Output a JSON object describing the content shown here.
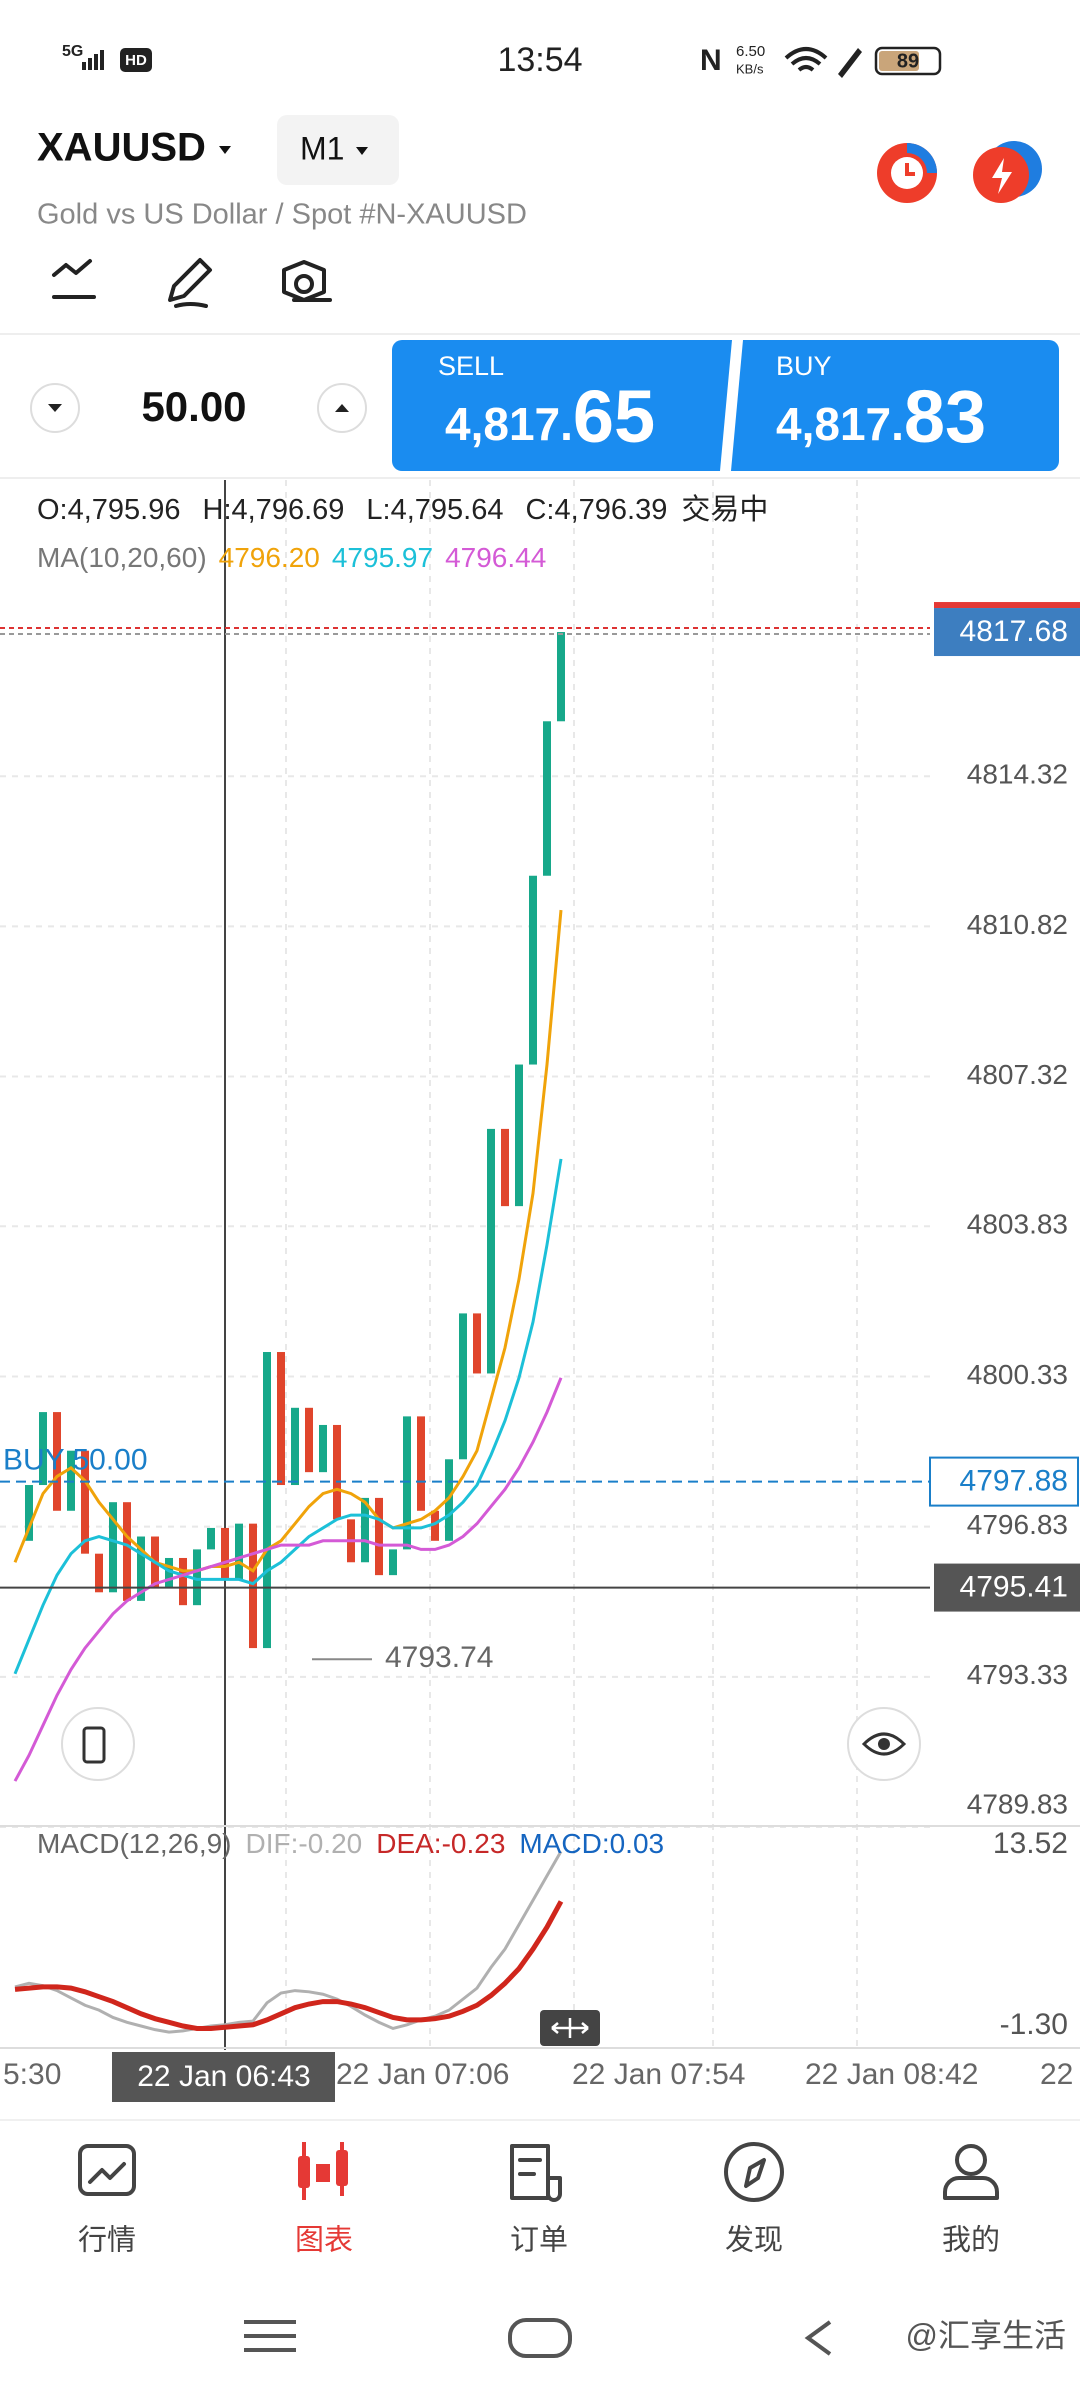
{
  "status_bar": {
    "time": "13:54",
    "network": "5G",
    "hd": "HD",
    "speed": "6.50",
    "speed_unit": "KB/s",
    "battery": "89"
  },
  "header": {
    "symbol": "XAUUSD",
    "timeframe": "M1",
    "description": "Gold vs US Dollar / Spot #N-XAUUSD"
  },
  "trade_panel": {
    "volume": "50.00",
    "sell": {
      "label": "SELL",
      "price_main": "4,817.",
      "price_big": "65"
    },
    "buy": {
      "label": "BUY",
      "price_main": "4,817.",
      "price_big": "83"
    }
  },
  "chart": {
    "ohlc": [
      "O:4,795.96",
      "H:4,796.69",
      "L:4,795.64",
      "C:4,796.39"
    ],
    "status": "交易中",
    "ma_label": "MA(10,20,60)",
    "ma": [
      {
        "name": "4796.20",
        "color": "#f0a30a",
        "values": [
          4796.0,
          4796.8,
          4797.6,
          4798.0,
          4798.2,
          4797.9,
          4797.4,
          4797.0,
          4796.6,
          4796.3,
          4796.0,
          4795.9,
          4795.8,
          4795.8,
          4795.9,
          4795.9,
          4796.0,
          4795.8,
          4796.3,
          4796.5,
          4796.9,
          4797.3,
          4797.6,
          4797.7,
          4797.6,
          4797.4,
          4797.0,
          4796.8,
          4796.9,
          4797.0,
          4797.2,
          4797.5,
          4798.0,
          4798.6,
          4799.8,
          4801.0,
          4802.6,
          4804.6,
          4807.6,
          4811.2
        ]
      },
      {
        "name": "4795.97",
        "color": "#1cc0d8",
        "values": [
          4793.4,
          4794.2,
          4795.0,
          4795.7,
          4796.2,
          4796.5,
          4796.6,
          4796.5,
          4796.4,
          4796.2,
          4796.0,
          4795.8,
          4795.7,
          4795.6,
          4795.6,
          4795.6,
          4795.6,
          4795.5,
          4795.8,
          4796.0,
          4796.3,
          4796.6,
          4796.8,
          4797.0,
          4797.1,
          4797.1,
          4797.0,
          4796.8,
          4796.8,
          4796.8,
          4796.9,
          4797.1,
          4797.4,
          4797.8,
          4798.5,
          4799.3,
          4800.3,
          4801.6,
          4803.4,
          4805.4
        ]
      },
      {
        "name": "4796.44",
        "color": "#d45ad6",
        "values": [
          4790.9,
          4791.5,
          4792.2,
          4792.9,
          4793.5,
          4794.0,
          4794.4,
          4794.8,
          4795.1,
          4795.3,
          4795.5,
          4795.6,
          4795.7,
          4795.8,
          4795.9,
          4796.0,
          4796.1,
          4796.2,
          4796.3,
          4796.4,
          4796.4,
          4796.4,
          4796.5,
          4796.5,
          4796.5,
          4796.5,
          4796.4,
          4796.4,
          4796.4,
          4796.3,
          4796.3,
          4796.4,
          4796.6,
          4796.9,
          4797.3,
          4797.7,
          4798.2,
          4798.8,
          4799.5,
          4800.3
        ]
      }
    ],
    "candles": {
      "up_color": "#17a88a",
      "down_color": "#e0452c",
      "closes": [
        4796.5,
        4797.8,
        4799.5,
        4797.2,
        4798.6,
        4796.2,
        4795.3,
        4797.4,
        4795.1,
        4796.6,
        4795.4,
        4796.1,
        4795.0,
        4796.3,
        4796.8,
        4795.6,
        4796.9,
        4794.0,
        4800.9,
        4797.8,
        4799.6,
        4798.1,
        4799.2,
        4797.0,
        4796.0,
        4797.5,
        4795.7,
        4796.3,
        4799.4,
        4797.2,
        4796.5,
        4798.4,
        4801.8,
        4800.4,
        4806.1,
        4804.3,
        4807.6,
        4812.0,
        4815.6,
        4817.68
      ]
    },
    "ylim": [
      4789.83,
      4821.2
    ],
    "yticks": [
      4814.32,
      4810.82,
      4807.32,
      4803.83,
      4800.33,
      4796.83,
      4793.33,
      4789.83
    ],
    "grid": true,
    "current_price": 4817.68,
    "position": {
      "label": "BUY 50.00",
      "price": 4797.88
    },
    "crosshair_price": 4795.41,
    "low_price": 4793.74,
    "crosshair_time": "22 Jan 06:43"
  },
  "macd": {
    "label": "MACD(12,26,9)",
    "dif": "DIF:-0.20",
    "dea": "DEA:-0.23",
    "macd": "MACD:0.03",
    "ylim": [
      -1.3,
      13.52
    ],
    "yticks": [
      {
        "value": -1.3,
        "label": "-1.30"
      },
      13.52
    ],
    "dif_color": "#b0b0b0",
    "dea_color": "#d0261c",
    "dif_values": [
      1.9,
      2.2,
      2.0,
      1.6,
      1.0,
      0.4,
      0.0,
      -0.6,
      -1.0,
      -1.3,
      -1.6,
      -1.8,
      -1.7,
      -1.5,
      -1.3,
      -1.2,
      -1.0,
      -0.9,
      0.6,
      1.4,
      1.6,
      1.5,
      1.3,
      0.9,
      0.3,
      -0.4,
      -1.0,
      -1.5,
      -1.2,
      -0.8,
      -0.5,
      0.0,
      0.9,
      1.8,
      3.5,
      5.0,
      7.0,
      9.0,
      11.0,
      13.0
    ],
    "dea_values": [
      1.7,
      1.8,
      1.9,
      1.9,
      1.8,
      1.5,
      1.1,
      0.7,
      0.2,
      -0.3,
      -0.7,
      -1.0,
      -1.3,
      -1.5,
      -1.5,
      -1.4,
      -1.3,
      -1.2,
      -0.8,
      -0.3,
      0.2,
      0.5,
      0.7,
      0.7,
      0.5,
      0.2,
      -0.2,
      -0.6,
      -0.8,
      -0.8,
      -0.7,
      -0.5,
      -0.1,
      0.4,
      1.2,
      2.2,
      3.4,
      5.0,
      6.8,
      8.9
    ]
  },
  "time_axis": [
    "5:30",
    "22 Jan 07:06",
    "22 Jan 07:54",
    "22 Jan 08:42",
    "22"
  ],
  "nav": [
    "行情",
    "图表",
    "订单",
    "发现",
    "我的"
  ],
  "watermark": "@汇享生活"
}
